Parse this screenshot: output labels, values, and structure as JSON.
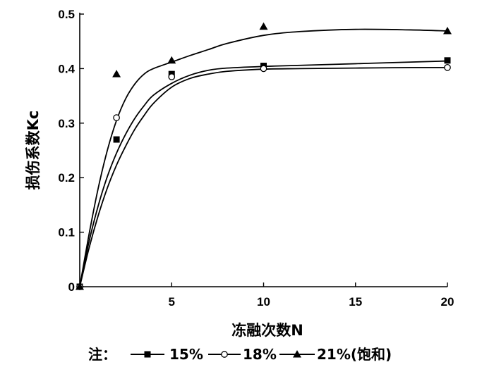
{
  "chart_data": {
    "type": "scatter",
    "xlabel": "冻融次数N",
    "ylabel": "损伤系数Kc",
    "xlim": [
      0,
      20
    ],
    "ylim": [
      0,
      0.5
    ],
    "x_ticks": [
      5,
      10,
      15,
      20
    ],
    "y_ticks": [
      0,
      0.1,
      0.2,
      0.3,
      0.4,
      0.5
    ],
    "y_tick_labels": [
      "0",
      "0.1",
      "0.2",
      "0.3",
      "0.4",
      "0.5"
    ],
    "grid": false,
    "legend_prefix": "注：",
    "legend_position": "bottom",
    "series": [
      {
        "name": "15%",
        "marker": "square",
        "points": [
          [
            0,
            0
          ],
          [
            2,
            0.27
          ],
          [
            5,
            0.39
          ],
          [
            10,
            0.405
          ],
          [
            20,
            0.415
          ]
        ],
        "fit": [
          [
            0,
            0
          ],
          [
            0.5,
            0.082
          ],
          [
            1,
            0.148
          ],
          [
            1.5,
            0.202
          ],
          [
            2,
            0.245
          ],
          [
            2.5,
            0.28
          ],
          [
            3,
            0.309
          ],
          [
            3.5,
            0.332
          ],
          [
            4,
            0.351
          ],
          [
            5,
            0.373
          ],
          [
            6,
            0.388
          ],
          [
            7,
            0.397
          ],
          [
            8,
            0.401
          ],
          [
            10,
            0.404
          ],
          [
            12,
            0.406
          ],
          [
            15,
            0.409
          ],
          [
            18,
            0.412
          ],
          [
            20,
            0.414
          ]
        ]
      },
      {
        "name": "18%",
        "marker": "circle",
        "points": [
          [
            0,
            0
          ],
          [
            2,
            0.31
          ],
          [
            5,
            0.385
          ],
          [
            10,
            0.4
          ],
          [
            20,
            0.402
          ]
        ],
        "fit": [
          [
            0,
            0
          ],
          [
            0.5,
            0.07
          ],
          [
            1,
            0.13
          ],
          [
            1.5,
            0.181
          ],
          [
            2,
            0.223
          ],
          [
            2.5,
            0.258
          ],
          [
            3,
            0.289
          ],
          [
            3.5,
            0.314
          ],
          [
            4,
            0.336
          ],
          [
            5,
            0.366
          ],
          [
            6,
            0.382
          ],
          [
            7,
            0.39
          ],
          [
            8,
            0.395
          ],
          [
            10,
            0.399
          ],
          [
            12,
            0.4
          ],
          [
            15,
            0.401
          ],
          [
            18,
            0.402
          ],
          [
            20,
            0.402
          ]
        ]
      },
      {
        "name": "21%(饱和)",
        "marker": "triangle",
        "points": [
          [
            0,
            0
          ],
          [
            2,
            0.39
          ],
          [
            5,
            0.415
          ],
          [
            10,
            0.477
          ],
          [
            20,
            0.469
          ]
        ],
        "fit": [
          [
            0,
            0
          ],
          [
            0.5,
            0.095
          ],
          [
            1,
            0.18
          ],
          [
            1.5,
            0.25
          ],
          [
            2,
            0.305
          ],
          [
            2.5,
            0.345
          ],
          [
            3,
            0.372
          ],
          [
            3.5,
            0.39
          ],
          [
            4,
            0.4
          ],
          [
            5,
            0.412
          ],
          [
            6,
            0.424
          ],
          [
            7,
            0.435
          ],
          [
            8,
            0.446
          ],
          [
            10,
            0.461
          ],
          [
            12,
            0.468
          ],
          [
            15,
            0.472
          ],
          [
            18,
            0.471
          ],
          [
            20,
            0.469
          ]
        ]
      }
    ]
  }
}
